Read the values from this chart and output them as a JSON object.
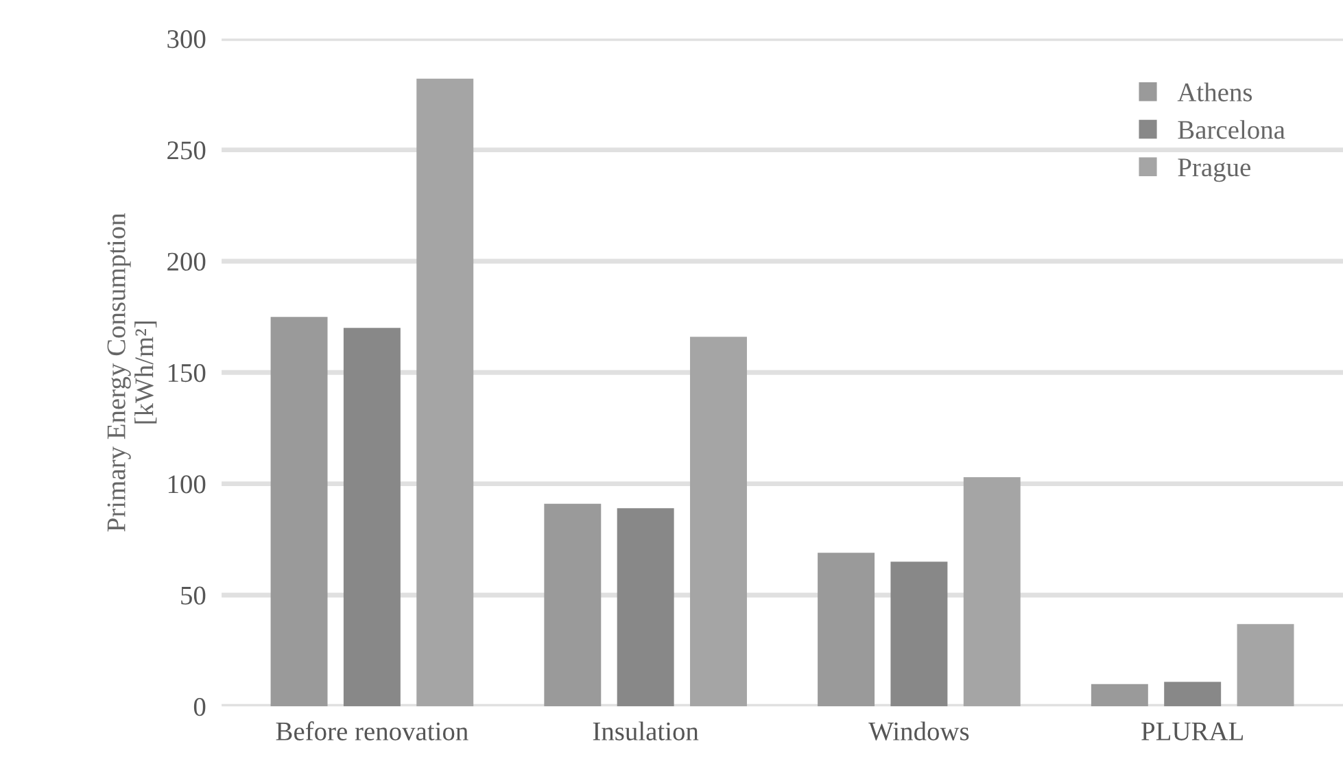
{
  "chart_data": {
    "type": "bar",
    "ylabel": "Primary Energy Consumption\n[kWh/m²]",
    "categories": [
      "Before renovation",
      "Insulation",
      "Windows",
      "PLURAL"
    ],
    "series": [
      {
        "name": "Athens",
        "color": "#9a9a9a",
        "values": [
          175,
          91,
          69,
          10
        ]
      },
      {
        "name": "Barcelona",
        "color": "#888888",
        "values": [
          170,
          89,
          65,
          11
        ]
      },
      {
        "name": "Prague",
        "color": "#a5a5a5",
        "values": [
          282,
          166,
          103,
          37
        ]
      }
    ],
    "ylim": [
      0,
      300
    ],
    "yticks": [
      0,
      50,
      100,
      150,
      200,
      250,
      300
    ],
    "grid": "y",
    "legend": "top right"
  }
}
